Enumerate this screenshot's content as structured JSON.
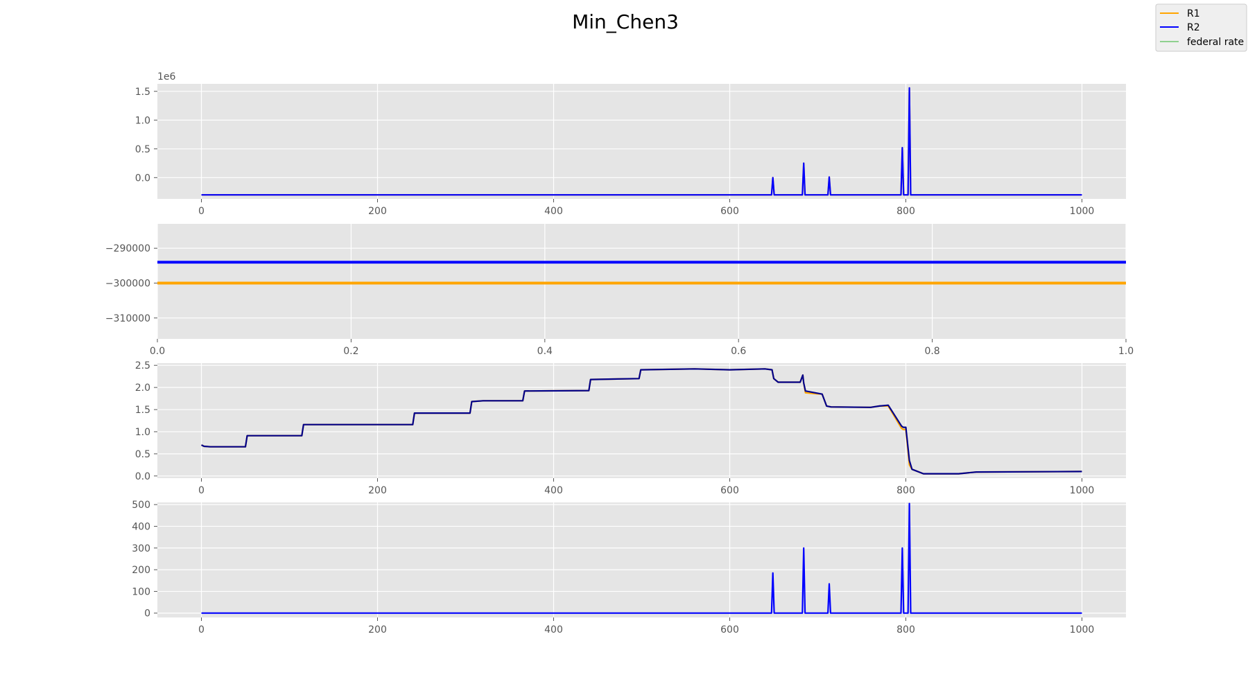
{
  "figure": {
    "title": "Min_Chen3",
    "legend": {
      "placement": "top-right",
      "entries": [
        {
          "label": "R1",
          "color": "#ffa500"
        },
        {
          "label": "R2",
          "color": "#0000ff"
        },
        {
          "label": "federal rate",
          "color": "#8fd18f"
        }
      ]
    }
  },
  "chart_data": [
    {
      "type": "line",
      "panel": 1,
      "x_range": [
        -50,
        1050
      ],
      "ylim": [
        -370000,
        1630000
      ],
      "y_offset_label": "1e6",
      "xticks": [
        0,
        200,
        400,
        600,
        800,
        1000
      ],
      "yticks": [
        0,
        500000,
        1000000,
        1500000
      ],
      "ytick_labels": [
        "0.0",
        "0.5",
        "1.0",
        "1.5"
      ],
      "grid": true,
      "series": [
        {
          "name": "R1",
          "color": "#ffa500",
          "base": -300000,
          "x_end": 1000,
          "spikes": [
            [
              649,
              0
            ],
            [
              684,
              250000
            ],
            [
              713,
              10000
            ],
            [
              796,
              520000
            ],
            [
              804,
              1560000
            ]
          ]
        },
        {
          "name": "R2",
          "color": "#0000ff",
          "base": -300000,
          "x_end": 1000,
          "spikes": [
            [
              649,
              0
            ],
            [
              684,
              250000
            ],
            [
              713,
              10000
            ],
            [
              796,
              520000
            ],
            [
              804,
              1560000
            ]
          ]
        }
      ]
    },
    {
      "type": "line",
      "panel": 2,
      "x_range": [
        0,
        1
      ],
      "ylim": [
        -316000,
        -283000
      ],
      "xticks": [
        0.0,
        0.2,
        0.4,
        0.6,
        0.8,
        1.0
      ],
      "xtick_labels": [
        "0.0",
        "0.2",
        "0.4",
        "0.6",
        "0.8",
        "1.0"
      ],
      "yticks": [
        -310000,
        -300000,
        -290000
      ],
      "ytick_labels": [
        "−310000",
        "−300000",
        "−290000"
      ],
      "grid": true,
      "series": [
        {
          "name": "R1",
          "color": "#ffa500",
          "value": -300000
        },
        {
          "name": "R2",
          "color": "#0000ff",
          "value": -294000
        }
      ]
    },
    {
      "type": "line",
      "panel": 3,
      "x_range": [
        -50,
        1050
      ],
      "ylim": [
        -0.05,
        2.55
      ],
      "xticks": [
        0,
        200,
        400,
        600,
        800,
        1000
      ],
      "yticks": [
        0.0,
        0.5,
        1.0,
        1.5,
        2.0,
        2.5
      ],
      "ytick_labels": [
        "0.0",
        "0.5",
        "1.0",
        "1.5",
        "2.0",
        "2.5"
      ],
      "grid": true,
      "series": [
        {
          "name": "R1",
          "color": "#ffa500",
          "x": [
            0,
            3,
            10,
            50,
            52,
            114,
            116,
            240,
            242,
            305,
            307,
            320,
            365,
            367,
            440,
            442,
            497,
            499,
            560,
            600,
            640,
            648,
            650,
            655,
            680,
            683,
            684,
            686,
            697,
            705,
            710,
            715,
            760,
            770,
            780,
            795,
            797,
            800,
            804,
            807,
            820,
            860,
            880,
            1000
          ],
          "y": [
            0.7,
            0.67,
            0.66,
            0.66,
            0.91,
            0.91,
            1.16,
            1.16,
            1.42,
            1.42,
            1.68,
            1.7,
            1.7,
            1.92,
            1.93,
            2.18,
            2.2,
            2.4,
            2.42,
            2.4,
            2.42,
            2.4,
            2.2,
            2.12,
            2.12,
            2.28,
            2.1,
            1.88,
            1.86,
            1.85,
            1.58,
            1.56,
            1.55,
            1.58,
            1.58,
            1.08,
            1.05,
            1.05,
            0.25,
            0.15,
            0.05,
            0.05,
            0.09,
            0.1
          ]
        },
        {
          "name": "R2",
          "color": "#00008b",
          "x": [
            0,
            3,
            10,
            50,
            52,
            114,
            116,
            240,
            242,
            305,
            307,
            320,
            365,
            367,
            440,
            442,
            497,
            499,
            560,
            600,
            640,
            648,
            650,
            655,
            680,
            683,
            684,
            686,
            697,
            705,
            710,
            715,
            760,
            770,
            780,
            795,
            797,
            800,
            804,
            807,
            820,
            860,
            880,
            1000
          ],
          "y": [
            0.7,
            0.67,
            0.66,
            0.66,
            0.91,
            0.91,
            1.16,
            1.16,
            1.42,
            1.42,
            1.68,
            1.7,
            1.7,
            1.92,
            1.93,
            2.18,
            2.2,
            2.4,
            2.42,
            2.4,
            2.42,
            2.4,
            2.2,
            2.12,
            2.12,
            2.28,
            2.1,
            1.92,
            1.88,
            1.85,
            1.58,
            1.56,
            1.55,
            1.58,
            1.6,
            1.13,
            1.1,
            1.1,
            0.35,
            0.15,
            0.05,
            0.05,
            0.09,
            0.1
          ]
        }
      ]
    },
    {
      "type": "line",
      "panel": 4,
      "x_range": [
        -50,
        1050
      ],
      "ylim": [
        -20,
        510
      ],
      "xticks": [
        0,
        200,
        400,
        600,
        800,
        1000
      ],
      "yticks": [
        0,
        100,
        200,
        300,
        400,
        500
      ],
      "grid": true,
      "series": [
        {
          "name": "R2",
          "color": "#0000ff",
          "base": 0,
          "x_end": 1000,
          "spikes": [
            [
              649,
              185
            ],
            [
              684,
              300
            ],
            [
              713,
              135
            ],
            [
              796,
              300
            ],
            [
              804,
              505
            ]
          ]
        }
      ]
    }
  ]
}
